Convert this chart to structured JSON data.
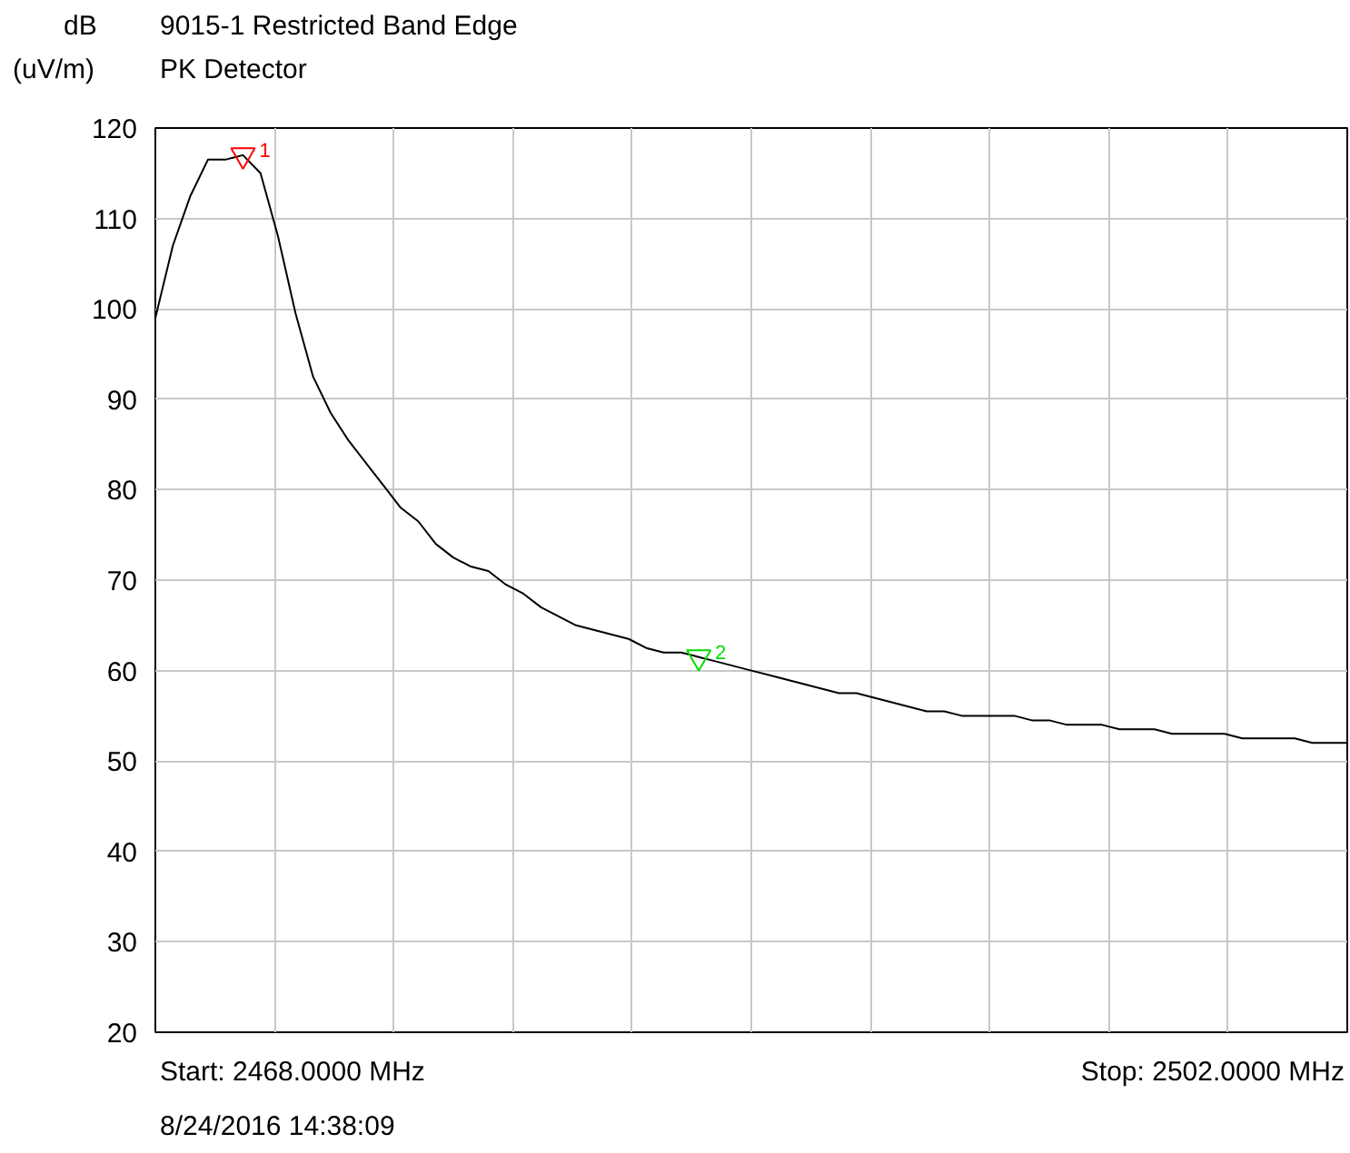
{
  "chart_data": {
    "type": "line",
    "title": "9015-1 Restricted Band Edge",
    "subtitle": "PK Detector",
    "ylabel": "dB (uV/m)",
    "categories": [
      null,
      null,
      null,
      null,
      null,
      null,
      null,
      null,
      null,
      null,
      null,
      null,
      null,
      null,
      null,
      null,
      null,
      null,
      null,
      null,
      null,
      null,
      null,
      null,
      null,
      null,
      null,
      null,
      null,
      null,
      null,
      null,
      null,
      null,
      null,
      null,
      null,
      null,
      null,
      null,
      null,
      null,
      null,
      null,
      null,
      null,
      null,
      null,
      null,
      null,
      null,
      null,
      null,
      null,
      null,
      null,
      null,
      null,
      null,
      null,
      null,
      null,
      null,
      null,
      null,
      null,
      null,
      null,
      null
    ],
    "series": [
      {
        "color": "#000000",
        "values": [
          99,
          107,
          112.5,
          116.5,
          116.5,
          117,
          115,
          108,
          99.5,
          92.5,
          88.5,
          85.5,
          83,
          80.5,
          78,
          76.5,
          74,
          72.5,
          71.5,
          71,
          69.5,
          68.5,
          67,
          66,
          65,
          64.5,
          64,
          63.5,
          62.5,
          62,
          62,
          61.5,
          61,
          60.5,
          60,
          59.5,
          59,
          58.5,
          58,
          57.5,
          57.5,
          57,
          56.5,
          56,
          55.5,
          55.5,
          55,
          55,
          55,
          55,
          54.5,
          54.5,
          54,
          54,
          54,
          53.5,
          53.5,
          53.5,
          53,
          53,
          53,
          53,
          52.5,
          52.5,
          52.5,
          52.5,
          52,
          52,
          52
        ]
      },
      {
        "name": "1",
        "type": "scatter",
        "marker": "triangle",
        "color": "#ff0000",
        "values": [
          null,
          null,
          null,
          null,
          null,
          117,
          null,
          null,
          null,
          null,
          null,
          null,
          null,
          null,
          null,
          null,
          null,
          null,
          null,
          null,
          null,
          null,
          null,
          null,
          null,
          null,
          null,
          null,
          null,
          null,
          null,
          null,
          null,
          null,
          null,
          null,
          null,
          null,
          null,
          null,
          null,
          null,
          null,
          null,
          null,
          null,
          null,
          null,
          null,
          null,
          null,
          null,
          null,
          null,
          null,
          null,
          null,
          null,
          null,
          null,
          null,
          null,
          null,
          null,
          null,
          null,
          null,
          null,
          null
        ]
      },
      {
        "name": "2",
        "type": "scatter",
        "marker": "triangle",
        "color": "#00dd00",
        "values": [
          null,
          null,
          null,
          null,
          null,
          null,
          null,
          null,
          null,
          null,
          null,
          null,
          null,
          null,
          null,
          null,
          null,
          null,
          null,
          null,
          null,
          null,
          null,
          null,
          null,
          null,
          null,
          null,
          null,
          null,
          null,
          61.5,
          null,
          null,
          null,
          null,
          null,
          null,
          null,
          null,
          null,
          null,
          null,
          null,
          null,
          null,
          null,
          null,
          null,
          null,
          null,
          null,
          null,
          null,
          null,
          null,
          null,
          null,
          null,
          null,
          null,
          null,
          null,
          null,
          null,
          null,
          null,
          null,
          null
        ]
      }
    ],
    "ylim": [
      20,
      120
    ],
    "yticks": [
      20,
      30,
      40,
      50,
      60,
      70,
      80,
      90,
      100,
      110,
      120
    ],
    "grid": true,
    "tick_labels": "y",
    "marker": "none",
    "line_style": "solid",
    "annotations": [
      "Start: 2468.0000 MHz",
      "Stop: 2502.0000 MHz",
      "8/24/2016 14:38:09"
    ]
  }
}
